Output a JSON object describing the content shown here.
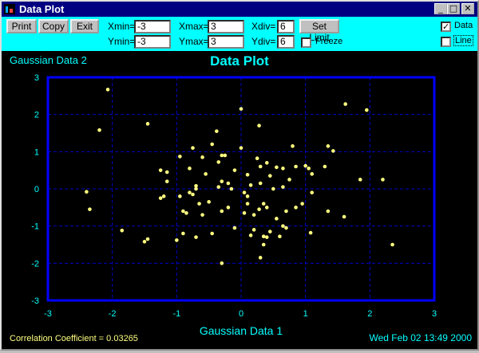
{
  "window": {
    "title": "Data Plot"
  },
  "toolbar": {
    "print_label": "Print",
    "copy_label": "Copy",
    "exit_label": "Exit",
    "xmin_label": "Xmin=",
    "xmin_value": "-3",
    "xmax_label": "Xmax=",
    "xmax_value": "3",
    "xdiv_label": "Xdiv=",
    "xdiv_value": "6",
    "ymin_label": "Ymin=",
    "ymin_value": "-3",
    "ymax_label": "Ymax=",
    "ymax_value": "3",
    "ydiv_label": "Ydiv=",
    "ydiv_value": "6",
    "set_limit_label": "Set Limit",
    "freeze_label": "Freeze",
    "freeze_checked": false,
    "data_label": "Data",
    "data_checked": true,
    "line_label": "Line",
    "line_checked": false
  },
  "icons": {
    "minimize": "minimize-icon",
    "maximize": "maximize-icon",
    "close": "close-icon"
  },
  "footer": {
    "correlation": "Correlation Coefficient = 0.03265",
    "timestamp": "Wed Feb 02 13:49 2000"
  },
  "colors": {
    "plot_frame": "#0000ff",
    "point": "#ffff80",
    "text": "#00ffff",
    "grid": "#0000c8",
    "toolbar_bg": "#00ffff",
    "titlebar": "#000080"
  },
  "chart_data": {
    "type": "scatter",
    "title": "Data Plot",
    "xlabel": "Gaussian Data 1",
    "ylabel": "Gaussian Data 2",
    "xlim": [
      -3,
      3
    ],
    "ylim": [
      -3,
      3
    ],
    "xticks": [
      "-3",
      "-2",
      "-1",
      "0",
      "1",
      "2",
      "3"
    ],
    "yticks": [
      "3",
      "2",
      "1",
      "0",
      "-1",
      "-2",
      "-3"
    ],
    "grid": true,
    "grid_style": "dashed",
    "points": [
      [
        -2.07,
        2.67
      ],
      [
        -2.2,
        1.58
      ],
      [
        -1.45,
        1.75
      ],
      [
        0.0,
        2.15
      ],
      [
        0.28,
        1.7
      ],
      [
        -0.38,
        1.55
      ],
      [
        1.62,
        2.28
      ],
      [
        1.95,
        2.12
      ],
      [
        -0.75,
        1.1
      ],
      [
        -0.45,
        1.2
      ],
      [
        -0.3,
        0.9
      ],
      [
        -0.25,
        0.9
      ],
      [
        0.25,
        0.82
      ],
      [
        0.4,
        0.7
      ],
      [
        0.0,
        1.1
      ],
      [
        0.8,
        1.15
      ],
      [
        1.35,
        1.15
      ],
      [
        1.43,
        1.02
      ],
      [
        -0.95,
        0.87
      ],
      [
        -0.6,
        0.85
      ],
      [
        -0.35,
        0.72
      ],
      [
        -0.1,
        0.5
      ],
      [
        0.1,
        0.38
      ],
      [
        0.3,
        0.6
      ],
      [
        0.55,
        0.58
      ],
      [
        0.65,
        0.55
      ],
      [
        0.85,
        0.6
      ],
      [
        1.0,
        0.62
      ],
      [
        1.05,
        0.55
      ],
      [
        1.3,
        0.6
      ],
      [
        1.1,
        0.4
      ],
      [
        -1.25,
        0.5
      ],
      [
        -1.15,
        0.45
      ],
      [
        -1.15,
        0.2
      ],
      [
        -0.8,
        0.55
      ],
      [
        -0.7,
        0.08
      ],
      [
        -0.7,
        0.0
      ],
      [
        -0.55,
        0.4
      ],
      [
        -0.3,
        0.2
      ],
      [
        -0.35,
        0.05
      ],
      [
        -0.2,
        0.15
      ],
      [
        -0.15,
        0.0
      ],
      [
        0.05,
        -0.1
      ],
      [
        0.1,
        -0.2
      ],
      [
        0.15,
        0.1
      ],
      [
        0.3,
        0.15
      ],
      [
        0.45,
        0.35
      ],
      [
        0.75,
        0.25
      ],
      [
        0.65,
        0.05
      ],
      [
        0.5,
        0.0
      ],
      [
        -2.4,
        -0.08
      ],
      [
        -2.35,
        -0.55
      ],
      [
        -1.25,
        -0.25
      ],
      [
        -1.2,
        -0.2
      ],
      [
        -0.95,
        -0.2
      ],
      [
        -0.75,
        -0.15
      ],
      [
        -0.8,
        -0.1
      ],
      [
        -0.65,
        -0.4
      ],
      [
        -0.5,
        -0.35
      ],
      [
        -0.9,
        -0.6
      ],
      [
        -0.85,
        -0.65
      ],
      [
        -0.6,
        -0.7
      ],
      [
        -0.2,
        -0.5
      ],
      [
        -0.3,
        -0.6
      ],
      [
        0.1,
        -0.4
      ],
      [
        0.05,
        -0.65
      ],
      [
        0.2,
        -0.7
      ],
      [
        0.28,
        -0.55
      ],
      [
        0.35,
        -0.4
      ],
      [
        0.4,
        -0.5
      ],
      [
        0.55,
        -0.8
      ],
      [
        0.7,
        -0.6
      ],
      [
        0.85,
        -0.5
      ],
      [
        0.95,
        -0.4
      ],
      [
        1.1,
        -0.1
      ],
      [
        1.35,
        -0.6
      ],
      [
        1.6,
        -0.75
      ],
      [
        1.85,
        0.25
      ],
      [
        2.2,
        0.25
      ],
      [
        -1.85,
        -1.12
      ],
      [
        -1.5,
        -1.42
      ],
      [
        -1.45,
        -1.35
      ],
      [
        -1.0,
        -1.38
      ],
      [
        -0.9,
        -1.2
      ],
      [
        -0.7,
        -1.3
      ],
      [
        -0.45,
        -1.2
      ],
      [
        -0.1,
        -1.05
      ],
      [
        0.15,
        -1.25
      ],
      [
        0.35,
        -1.28
      ],
      [
        0.4,
        -1.3
      ],
      [
        0.2,
        -1.1
      ],
      [
        0.45,
        -1.15
      ],
      [
        0.65,
        -1.0
      ],
      [
        0.7,
        -1.05
      ],
      [
        0.6,
        -1.28
      ],
      [
        1.08,
        -1.18
      ],
      [
        0.35,
        -1.5
      ],
      [
        0.3,
        -1.85
      ],
      [
        -0.3,
        -2.0
      ],
      [
        2.35,
        -1.5
      ]
    ]
  }
}
